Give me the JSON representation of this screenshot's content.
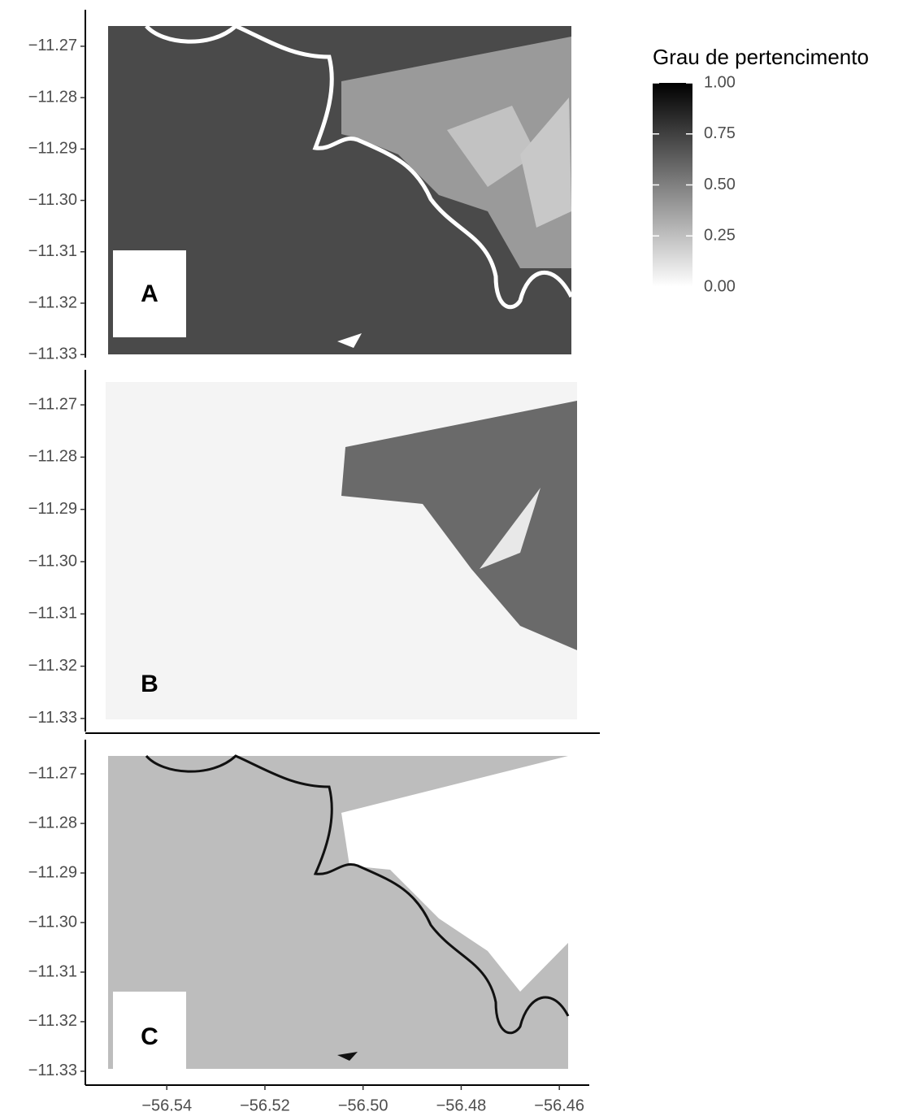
{
  "chart_data": [
    {
      "type": "raster",
      "label": "A",
      "ylim": [
        -11.3306,
        -11.2629
      ],
      "yticks": [
        {
          "value": -11.27,
          "label": "−11.27"
        },
        {
          "value": -11.28,
          "label": "−11.28"
        },
        {
          "value": -11.29,
          "label": "−11.29"
        },
        {
          "value": -11.3,
          "label": "−11.30"
        },
        {
          "value": -11.31,
          "label": "−11.31"
        },
        {
          "value": -11.32,
          "label": "−11.32"
        },
        {
          "value": -11.33,
          "label": "−11.33"
        }
      ]
    },
    {
      "type": "raster",
      "label": "B",
      "ylim": [
        -11.3325,
        -11.2633
      ],
      "yticks": [
        {
          "value": -11.27,
          "label": "−11.27"
        },
        {
          "value": -11.28,
          "label": "−11.28"
        },
        {
          "value": -11.29,
          "label": "−11.29"
        },
        {
          "value": -11.3,
          "label": "−11.30"
        },
        {
          "value": -11.31,
          "label": "−11.31"
        },
        {
          "value": -11.32,
          "label": "−11.32"
        },
        {
          "value": -11.33,
          "label": "−11.33"
        }
      ]
    },
    {
      "type": "raster",
      "label": "C",
      "ylim": [
        -11.3328,
        -11.2631
      ],
      "yticks": [
        {
          "value": -11.27,
          "label": "−11.27"
        },
        {
          "value": -11.28,
          "label": "−11.28"
        },
        {
          "value": -11.29,
          "label": "−11.29"
        },
        {
          "value": -11.3,
          "label": "−11.30"
        },
        {
          "value": -11.31,
          "label": "−11.31"
        },
        {
          "value": -11.32,
          "label": "−11.32"
        },
        {
          "value": -11.33,
          "label": "−11.33"
        }
      ],
      "xlim": [
        -56.5566,
        -56.4539
      ],
      "xticks": [
        {
          "value": -56.54,
          "label": "−56.54"
        },
        {
          "value": -56.52,
          "label": "−56.52"
        },
        {
          "value": -56.5,
          "label": "−56.50"
        },
        {
          "value": -56.48,
          "label": "−56.48"
        },
        {
          "value": -56.46,
          "label": "−56.46"
        }
      ]
    }
  ],
  "colorbar": {
    "title": "Grau de pertencimento",
    "limits": [
      0,
      1
    ],
    "ticks": [
      {
        "value": 1,
        "label": "1.00"
      },
      {
        "value": 0.75,
        "label": "0.75"
      },
      {
        "value": 0.5,
        "label": "0.50"
      },
      {
        "value": 0.25,
        "label": "0.25"
      },
      {
        "value": 0,
        "label": "0.00"
      }
    ]
  }
}
